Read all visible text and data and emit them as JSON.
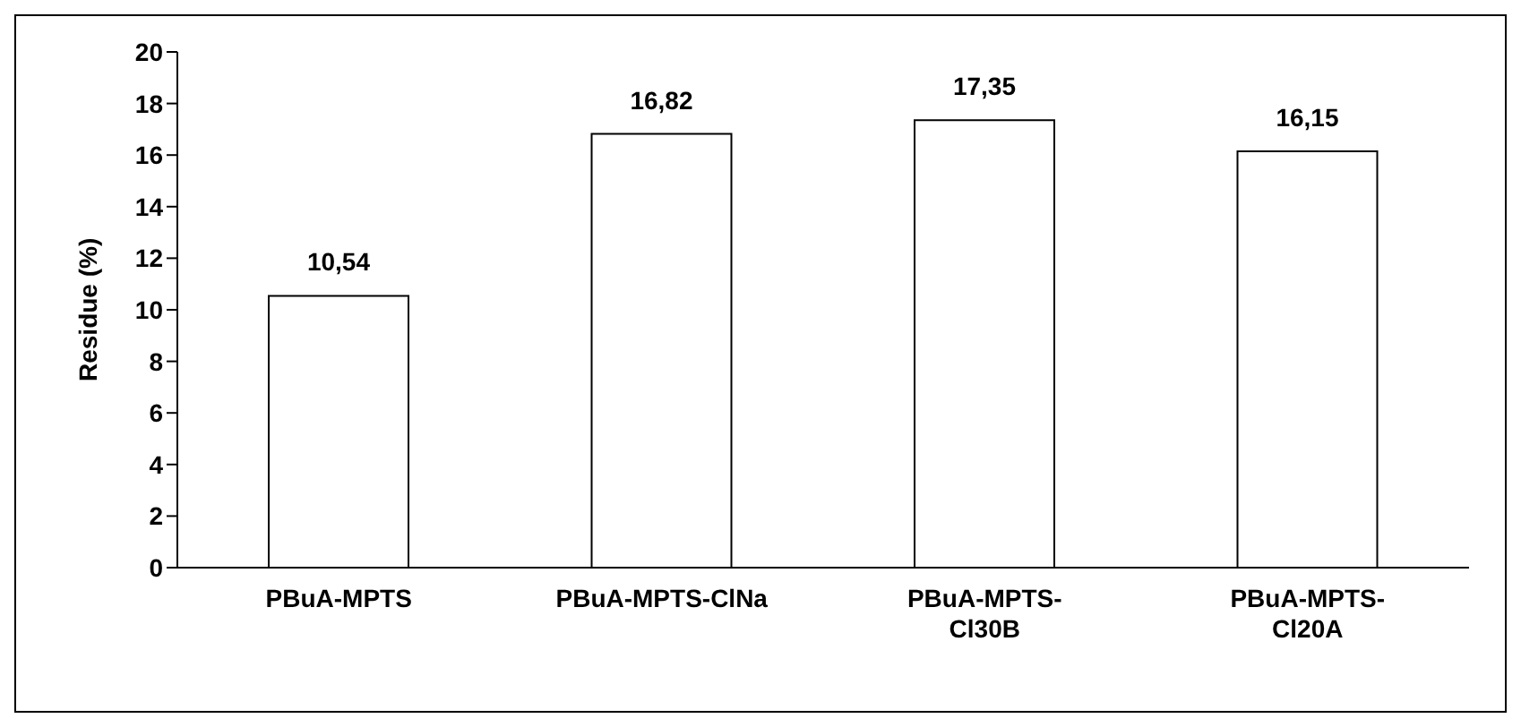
{
  "chart_data": {
    "type": "bar",
    "ylabel": "Residue (%)",
    "categories": [
      "PBuA-MPTS",
      "PBuA-MPTS-ClNa",
      "PBuA-MPTS-Cl30B",
      "PBuA-MPTS-Cl20A"
    ],
    "values": [
      10.54,
      16.82,
      17.35,
      16.15
    ],
    "value_labels": [
      "10,54",
      "16,82",
      "17,35",
      "16,15"
    ],
    "color": "#ffffff",
    "ylim": [
      0,
      20
    ],
    "yticks": [
      0,
      2,
      4,
      6,
      8,
      10,
      12,
      14,
      16,
      18,
      20
    ],
    "grid": false,
    "legend": false
  }
}
